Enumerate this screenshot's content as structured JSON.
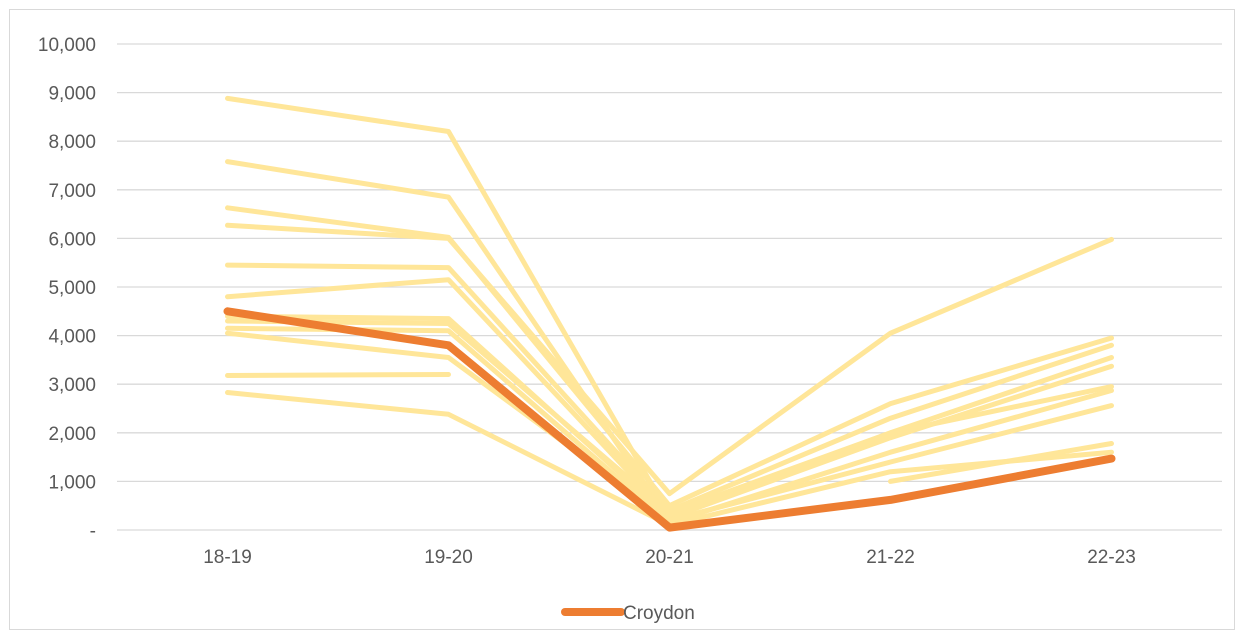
{
  "chart_data": {
    "type": "line",
    "title": "",
    "xlabel": "",
    "ylabel": "",
    "categories": [
      "18-19",
      "19-20",
      "20-21",
      "21-22",
      "22-23"
    ],
    "ylim": [
      0,
      10000
    ],
    "yticks": [
      0,
      1000,
      2000,
      3000,
      4000,
      5000,
      6000,
      7000,
      8000,
      9000,
      10000
    ],
    "ytick_labels": [
      "-",
      "1,000",
      "2,000",
      "3,000",
      "4,000",
      "5,000",
      "6,000",
      "7,000",
      "8,000",
      "9,000",
      "10,000"
    ],
    "grid": true,
    "legend": {
      "position": "bottom",
      "entries": [
        "Croydon"
      ]
    },
    "colors": {
      "highlight": "#ed7d31",
      "others": "#ffe699",
      "grid": "#d9d9d9",
      "text": "#595959"
    },
    "highlight_series": {
      "name": "Croydon",
      "values": [
        4500,
        3800,
        50,
        620,
        1470
      ]
    },
    "other_series": [
      {
        "values": [
          8880,
          8200,
          300,
          null,
          null
        ]
      },
      {
        "values": [
          7580,
          6850,
          200,
          null,
          null
        ]
      },
      {
        "values": [
          6630,
          6020,
          500,
          2600,
          3950
        ]
      },
      {
        "values": [
          6270,
          6000,
          750,
          4050,
          5980
        ]
      },
      {
        "values": [
          5450,
          5400,
          400,
          2300,
          3800
        ]
      },
      {
        "values": [
          4800,
          5150,
          300,
          2000,
          3550
        ]
      },
      {
        "values": [
          4400,
          4350,
          250,
          1900,
          3370
        ]
      },
      {
        "values": [
          4300,
          4250,
          350,
          2000,
          2950
        ]
      },
      {
        "values": [
          4150,
          4100,
          150,
          1600,
          2870
        ]
      },
      {
        "values": [
          4050,
          3550,
          200,
          1400,
          2560
        ]
      },
      {
        "values": [
          3180,
          3200,
          null,
          1000,
          1780
        ]
      },
      {
        "values": [
          2830,
          2380,
          100,
          1200,
          1600
        ]
      }
    ]
  }
}
